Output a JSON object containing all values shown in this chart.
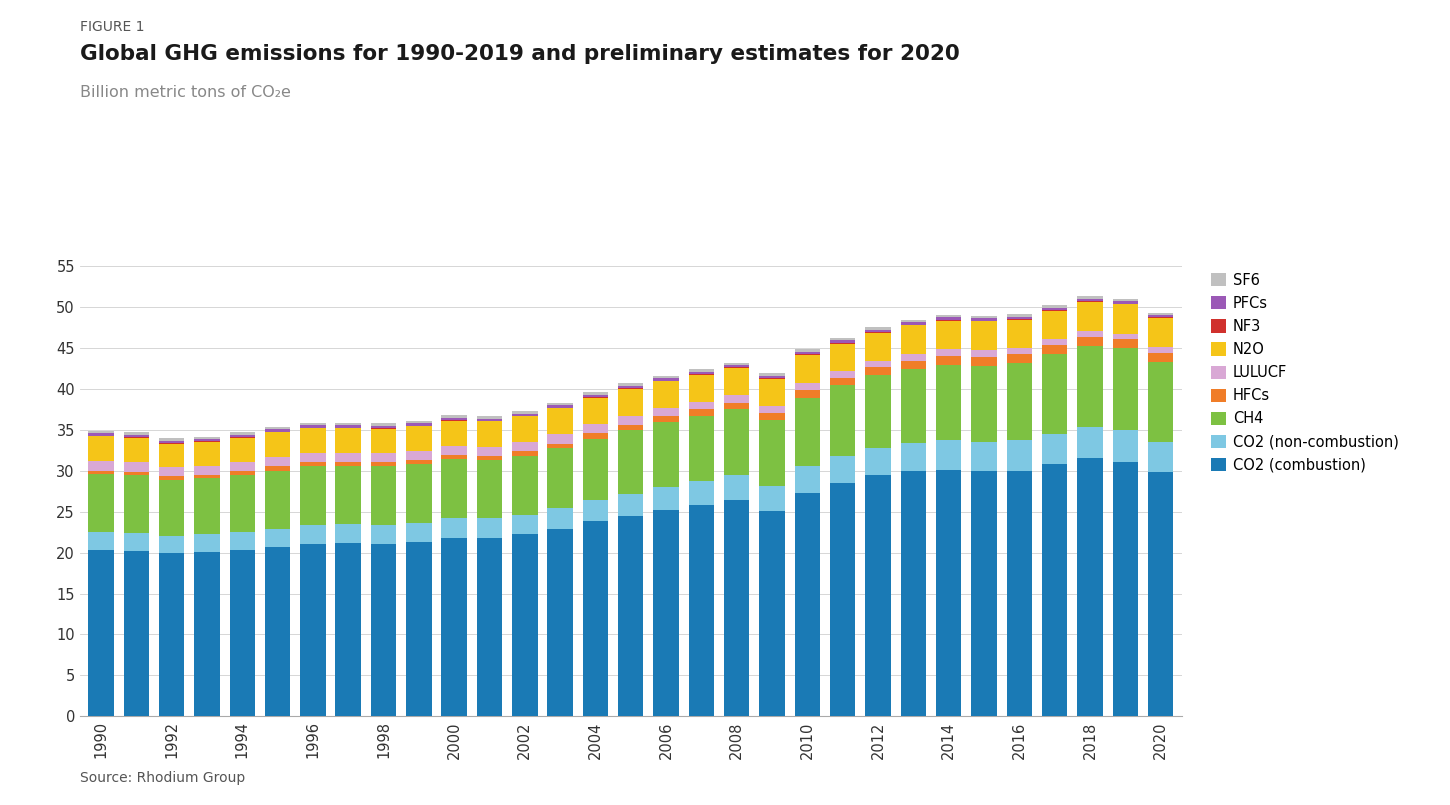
{
  "title_fig": "FIGURE 1",
  "title_main": "Global GHG emissions for 1990-2019 and preliminary estimates for 2020",
  "subtitle": "Billion metric tons of CO₂e",
  "source": "Source: Rhodium Group",
  "years": [
    1990,
    1991,
    1992,
    1993,
    1994,
    1995,
    1996,
    1997,
    1998,
    1999,
    2000,
    2001,
    2002,
    2003,
    2004,
    2005,
    2006,
    2007,
    2008,
    2009,
    2010,
    2011,
    2012,
    2013,
    2014,
    2015,
    2016,
    2017,
    2018,
    2019,
    2020
  ],
  "series": {
    "CO2 (combustion)": [
      20.3,
      20.2,
      19.9,
      20.1,
      20.3,
      20.7,
      21.1,
      21.2,
      21.1,
      21.3,
      21.8,
      21.8,
      22.2,
      22.9,
      23.8,
      24.5,
      25.2,
      25.8,
      26.4,
      25.1,
      27.3,
      28.5,
      29.4,
      29.9,
      30.1,
      29.9,
      30.0,
      30.8,
      31.5,
      31.1,
      29.8
    ],
    "CO2 (non-combustion)": [
      2.2,
      2.2,
      2.1,
      2.1,
      2.2,
      2.2,
      2.3,
      2.3,
      2.3,
      2.3,
      2.4,
      2.4,
      2.4,
      2.5,
      2.6,
      2.7,
      2.8,
      2.9,
      3.0,
      3.0,
      3.2,
      3.3,
      3.4,
      3.5,
      3.6,
      3.6,
      3.7,
      3.7,
      3.8,
      3.8,
      3.7
    ],
    "CH4": [
      7.1,
      7.0,
      6.9,
      6.9,
      7.0,
      7.1,
      7.2,
      7.1,
      7.1,
      7.2,
      7.2,
      7.1,
      7.2,
      7.3,
      7.5,
      7.7,
      7.9,
      8.0,
      8.1,
      8.1,
      8.4,
      8.6,
      8.8,
      9.0,
      9.2,
      9.3,
      9.4,
      9.7,
      9.9,
      10.0,
      9.8
    ],
    "HFCs": [
      0.4,
      0.4,
      0.4,
      0.4,
      0.4,
      0.5,
      0.5,
      0.5,
      0.5,
      0.5,
      0.5,
      0.5,
      0.6,
      0.6,
      0.7,
      0.7,
      0.7,
      0.8,
      0.8,
      0.8,
      0.9,
      0.9,
      1.0,
      1.0,
      1.1,
      1.1,
      1.1,
      1.1,
      1.1,
      1.1,
      1.1
    ],
    "LULUCF": [
      1.2,
      1.2,
      1.1,
      1.1,
      1.1,
      1.2,
      1.1,
      1.1,
      1.1,
      1.1,
      1.1,
      1.1,
      1.1,
      1.1,
      1.1,
      1.1,
      1.0,
      0.9,
      0.9,
      0.9,
      0.9,
      0.8,
      0.8,
      0.8,
      0.8,
      0.8,
      0.7,
      0.7,
      0.7,
      0.7,
      0.7
    ],
    "N2O": [
      3.0,
      3.0,
      2.9,
      2.9,
      3.0,
      3.0,
      3.0,
      3.0,
      3.0,
      3.0,
      3.1,
      3.1,
      3.1,
      3.2,
      3.2,
      3.3,
      3.3,
      3.3,
      3.3,
      3.3,
      3.4,
      3.4,
      3.4,
      3.5,
      3.5,
      3.5,
      3.5,
      3.5,
      3.6,
      3.6,
      3.5
    ],
    "NF3": [
      0.05,
      0.05,
      0.05,
      0.05,
      0.05,
      0.05,
      0.05,
      0.05,
      0.05,
      0.05,
      0.05,
      0.05,
      0.05,
      0.05,
      0.06,
      0.07,
      0.07,
      0.08,
      0.08,
      0.08,
      0.08,
      0.08,
      0.08,
      0.08,
      0.08,
      0.08,
      0.08,
      0.08,
      0.08,
      0.08,
      0.08
    ],
    "PFCs": [
      0.3,
      0.3,
      0.3,
      0.3,
      0.3,
      0.3,
      0.3,
      0.3,
      0.3,
      0.3,
      0.3,
      0.3,
      0.3,
      0.3,
      0.3,
      0.3,
      0.3,
      0.3,
      0.3,
      0.3,
      0.3,
      0.3,
      0.3,
      0.3,
      0.3,
      0.3,
      0.3,
      0.3,
      0.3,
      0.3,
      0.3
    ],
    "SF6": [
      0.3,
      0.3,
      0.3,
      0.3,
      0.3,
      0.3,
      0.3,
      0.3,
      0.3,
      0.3,
      0.3,
      0.3,
      0.3,
      0.3,
      0.3,
      0.3,
      0.3,
      0.3,
      0.3,
      0.3,
      0.3,
      0.3,
      0.3,
      0.3,
      0.3,
      0.3,
      0.3,
      0.3,
      0.3,
      0.3,
      0.3
    ]
  },
  "colors": {
    "CO2 (combustion)": "#1a7ab5",
    "CO2 (non-combustion)": "#7ec8e3",
    "CH4": "#7dc142",
    "HFCs": "#f07d28",
    "LULUCF": "#d9a8d5",
    "N2O": "#f5c518",
    "NF3": "#d0312d",
    "PFCs": "#9b59b6",
    "SF6": "#c0c0c0"
  },
  "ylim": [
    0,
    55
  ],
  "yticks": [
    0,
    5,
    10,
    15,
    20,
    25,
    30,
    35,
    40,
    45,
    50,
    55
  ],
  "background_color": "#ffffff",
  "bar_width": 0.72
}
